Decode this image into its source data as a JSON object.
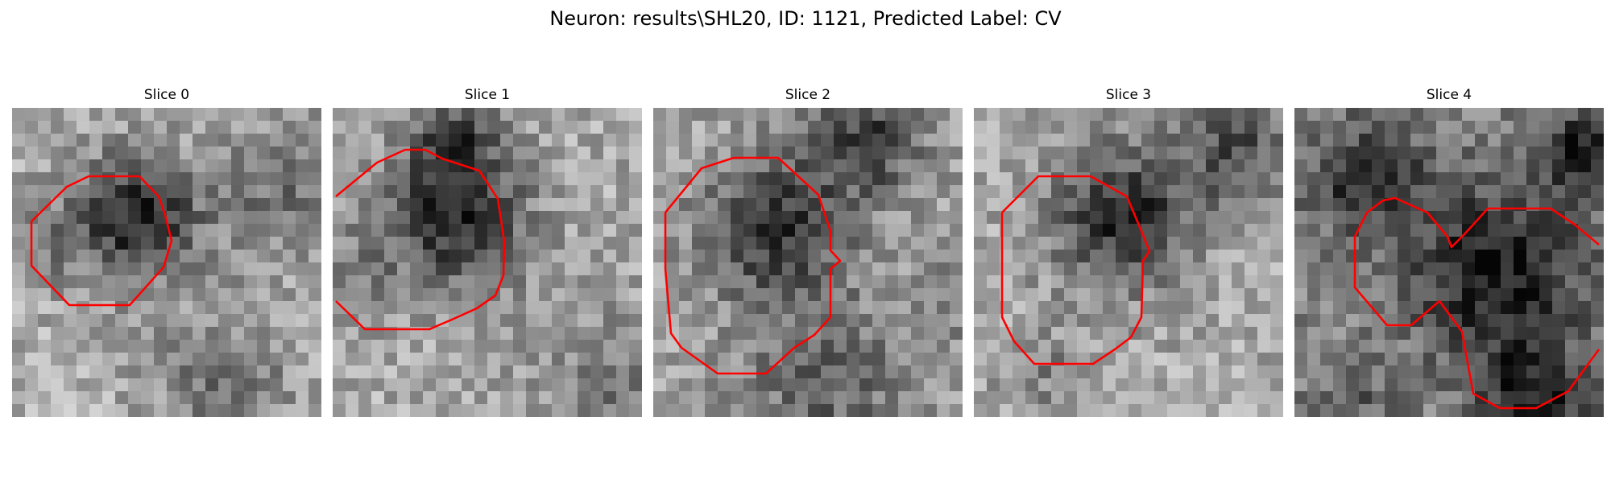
{
  "figure": {
    "title": "Neuron: results\\SHL20, ID: 1121, Predicted Label: CV",
    "outline_color": "#ff0000",
    "colormap": "grayscale",
    "grid_size": 24
  },
  "slices": [
    {
      "title": "Slice 0"
    },
    {
      "title": "Slice 1"
    },
    {
      "title": "Slice 2"
    },
    {
      "title": "Slice 3"
    },
    {
      "title": "Slice 4"
    }
  ]
}
